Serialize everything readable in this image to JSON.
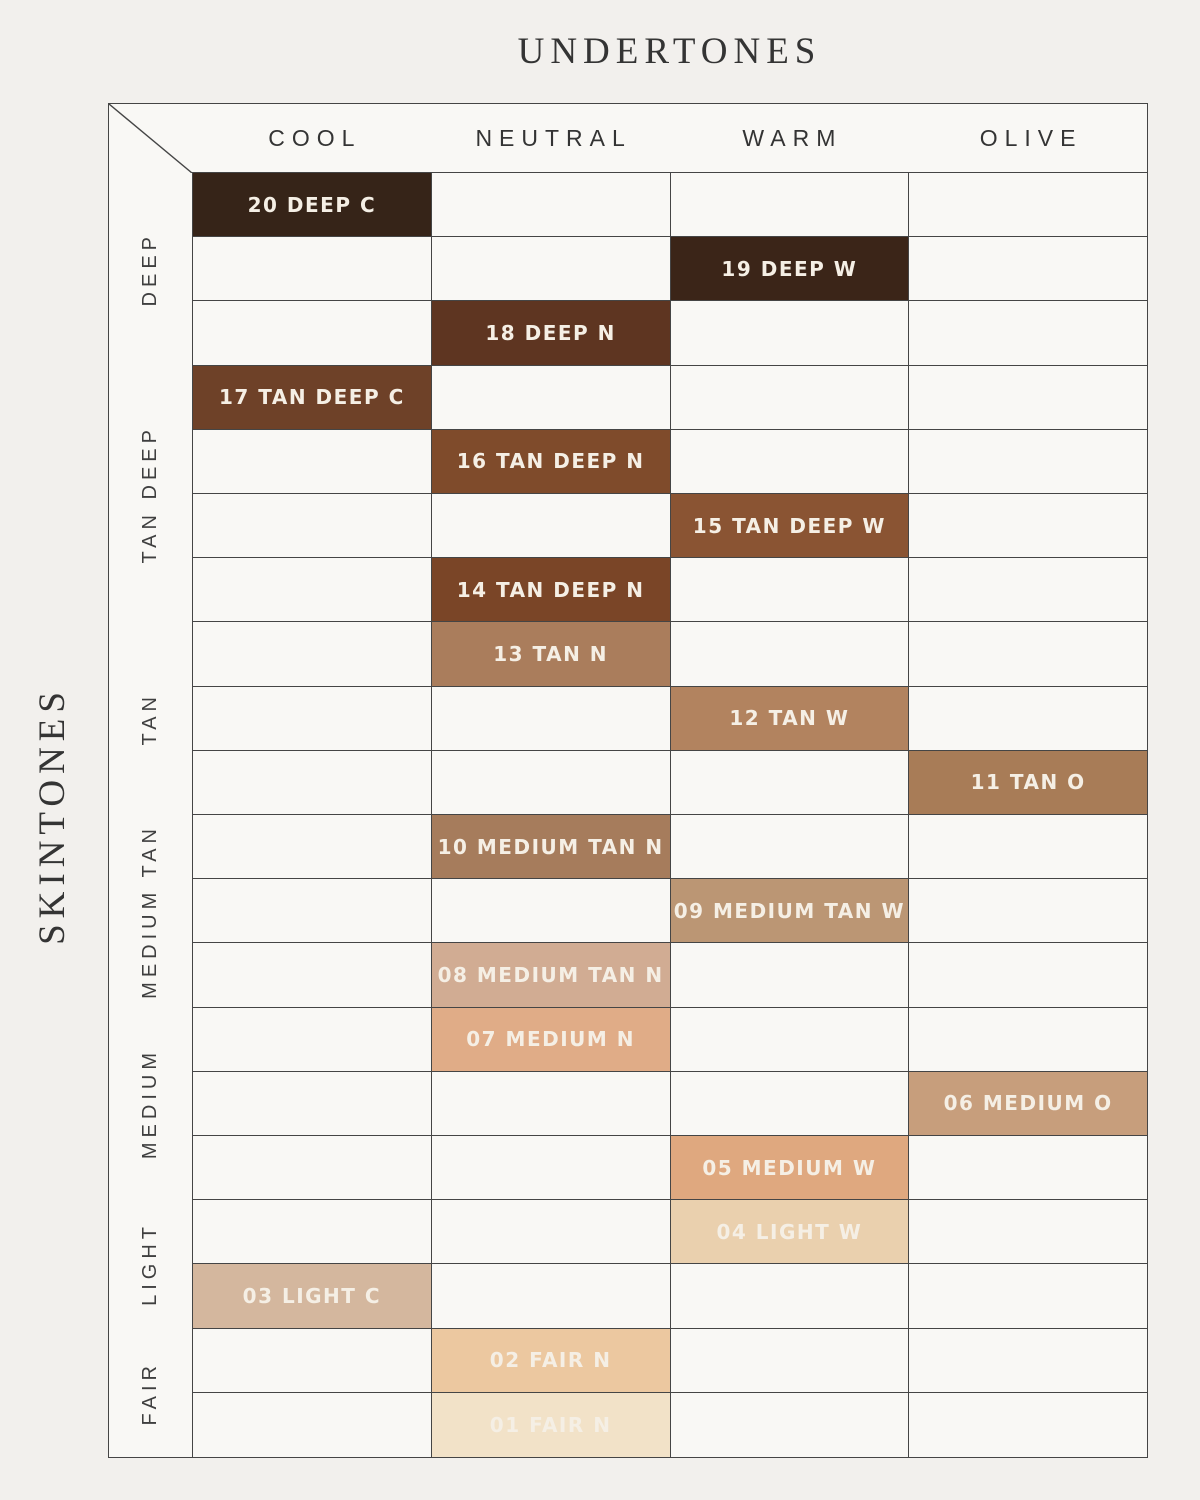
{
  "title": "UNDERTONES",
  "side_title": "SKINTONES",
  "columns": [
    "COOL",
    "NEUTRAL",
    "WARM",
    "OLIVE"
  ],
  "row_groups": [
    {
      "label": "DEEP",
      "rows": 3
    },
    {
      "label": "TAN DEEP",
      "rows": 4
    },
    {
      "label": "TAN",
      "rows": 3
    },
    {
      "label": "MEDIUM TAN",
      "rows": 3
    },
    {
      "label": "MEDIUM",
      "rows": 3
    },
    {
      "label": "LIGHT",
      "rows": 2
    },
    {
      "label": "FAIR",
      "rows": 2
    }
  ],
  "shades": [
    {
      "label": "20 DEEP C",
      "column": "COOL",
      "skintone": "DEEP",
      "color": "#362418"
    },
    {
      "label": "19 DEEP W",
      "column": "WARM",
      "skintone": "DEEP",
      "color": "#3b2518"
    },
    {
      "label": "18 DEEP N",
      "column": "NEUTRAL",
      "skintone": "DEEP",
      "color": "#5e3521"
    },
    {
      "label": "17 TAN DEEP C",
      "column": "COOL",
      "skintone": "TAN DEEP",
      "color": "#6e4128"
    },
    {
      "label": "16 TAN DEEP N",
      "column": "NEUTRAL",
      "skintone": "TAN DEEP",
      "color": "#7f4b2b"
    },
    {
      "label": "15 TAN DEEP W",
      "column": "WARM",
      "skintone": "TAN DEEP",
      "color": "#8a5433"
    },
    {
      "label": "14 TAN DEEP N",
      "column": "NEUTRAL",
      "skintone": "TAN DEEP",
      "color": "#7a4527"
    },
    {
      "label": "13 TAN N",
      "column": "NEUTRAL",
      "skintone": "TAN",
      "color": "#aa7d5c"
    },
    {
      "label": "12 TAN W",
      "column": "WARM",
      "skintone": "TAN",
      "color": "#b2835f"
    },
    {
      "label": "11 TAN O",
      "column": "OLIVE",
      "skintone": "TAN",
      "color": "#a87c57"
    },
    {
      "label": "10 MEDIUM TAN N",
      "column": "NEUTRAL",
      "skintone": "MEDIUM TAN",
      "color": "#a67c5c"
    },
    {
      "label": "09 MEDIUM TAN W",
      "column": "WARM",
      "skintone": "MEDIUM TAN",
      "color": "#bb9674"
    },
    {
      "label": "08 MEDIUM TAN N",
      "column": "NEUTRAL",
      "skintone": "MEDIUM TAN",
      "color": "#d1ac93"
    },
    {
      "label": "07 MEDIUM N",
      "column": "NEUTRAL",
      "skintone": "MEDIUM",
      "color": "#e0ac87"
    },
    {
      "label": "06 MEDIUM O",
      "column": "OLIVE",
      "skintone": "MEDIUM",
      "color": "#c79e7c"
    },
    {
      "label": "05 MEDIUM W",
      "column": "WARM",
      "skintone": "MEDIUM",
      "color": "#dfa87f"
    },
    {
      "label": "04 LIGHT W",
      "column": "WARM",
      "skintone": "LIGHT",
      "color": "#ead0ae"
    },
    {
      "label": "03 LIGHT C",
      "column": "COOL",
      "skintone": "LIGHT",
      "color": "#d4b79e"
    },
    {
      "label": "02 FAIR N",
      "column": "NEUTRAL",
      "skintone": "FAIR",
      "color": "#ecc8a0"
    },
    {
      "label": "01 FAIR N",
      "column": "NEUTRAL",
      "skintone": "FAIR",
      "color": "#f2e2c8"
    }
  ],
  "colors": {
    "page_bg": "#f2f0ed",
    "cell_bg": "#f9f8f5",
    "grid_line": "#454545",
    "heading_text": "#343434",
    "group_label_text": "#3f3f3f",
    "shade_label_text": "#f5efe5"
  },
  "chart_data": {
    "type": "table",
    "title": "UNDERTONES",
    "row_axis_label": "SKINTONES",
    "columns": [
      "COOL",
      "NEUTRAL",
      "WARM",
      "OLIVE"
    ],
    "row_groups": [
      "DEEP",
      "TAN DEEP",
      "TAN",
      "MEDIUM TAN",
      "MEDIUM",
      "LIGHT",
      "FAIR"
    ],
    "entries": [
      {
        "shade": "20 DEEP C",
        "undertone": "COOL",
        "skintone": "DEEP",
        "swatch": "#362418"
      },
      {
        "shade": "19 DEEP W",
        "undertone": "WARM",
        "skintone": "DEEP",
        "swatch": "#3b2518"
      },
      {
        "shade": "18 DEEP N",
        "undertone": "NEUTRAL",
        "skintone": "DEEP",
        "swatch": "#5e3521"
      },
      {
        "shade": "17 TAN DEEP C",
        "undertone": "COOL",
        "skintone": "TAN DEEP",
        "swatch": "#6e4128"
      },
      {
        "shade": "16 TAN DEEP N",
        "undertone": "NEUTRAL",
        "skintone": "TAN DEEP",
        "swatch": "#7f4b2b"
      },
      {
        "shade": "15 TAN DEEP W",
        "undertone": "WARM",
        "skintone": "TAN DEEP",
        "swatch": "#8a5433"
      },
      {
        "shade": "14 TAN DEEP N",
        "undertone": "NEUTRAL",
        "skintone": "TAN DEEP",
        "swatch": "#7a4527"
      },
      {
        "shade": "13 TAN N",
        "undertone": "NEUTRAL",
        "skintone": "TAN",
        "swatch": "#aa7d5c"
      },
      {
        "shade": "12 TAN W",
        "undertone": "WARM",
        "skintone": "TAN",
        "swatch": "#b2835f"
      },
      {
        "shade": "11 TAN O",
        "undertone": "OLIVE",
        "skintone": "TAN",
        "swatch": "#a87c57"
      },
      {
        "shade": "10 MEDIUM TAN N",
        "undertone": "NEUTRAL",
        "skintone": "MEDIUM TAN",
        "swatch": "#a67c5c"
      },
      {
        "shade": "09 MEDIUM TAN W",
        "undertone": "WARM",
        "skintone": "MEDIUM TAN",
        "swatch": "#bb9674"
      },
      {
        "shade": "08 MEDIUM TAN N",
        "undertone": "NEUTRAL",
        "skintone": "MEDIUM TAN",
        "swatch": "#d1ac93"
      },
      {
        "shade": "07 MEDIUM N",
        "undertone": "NEUTRAL",
        "skintone": "MEDIUM",
        "swatch": "#e0ac87"
      },
      {
        "shade": "06 MEDIUM O",
        "undertone": "OLIVE",
        "skintone": "MEDIUM",
        "swatch": "#c79e7c"
      },
      {
        "shade": "05 MEDIUM W",
        "undertone": "WARM",
        "skintone": "MEDIUM",
        "swatch": "#dfa87f"
      },
      {
        "shade": "04 LIGHT W",
        "undertone": "WARM",
        "skintone": "LIGHT",
        "swatch": "#ead0ae"
      },
      {
        "shade": "03 LIGHT C",
        "undertone": "COOL",
        "skintone": "LIGHT",
        "swatch": "#d4b79e"
      },
      {
        "shade": "02 FAIR N",
        "undertone": "NEUTRAL",
        "skintone": "FAIR",
        "swatch": "#ecc8a0"
      },
      {
        "shade": "01 FAIR N",
        "undertone": "NEUTRAL",
        "skintone": "FAIR",
        "swatch": "#f2e2c8"
      }
    ]
  }
}
